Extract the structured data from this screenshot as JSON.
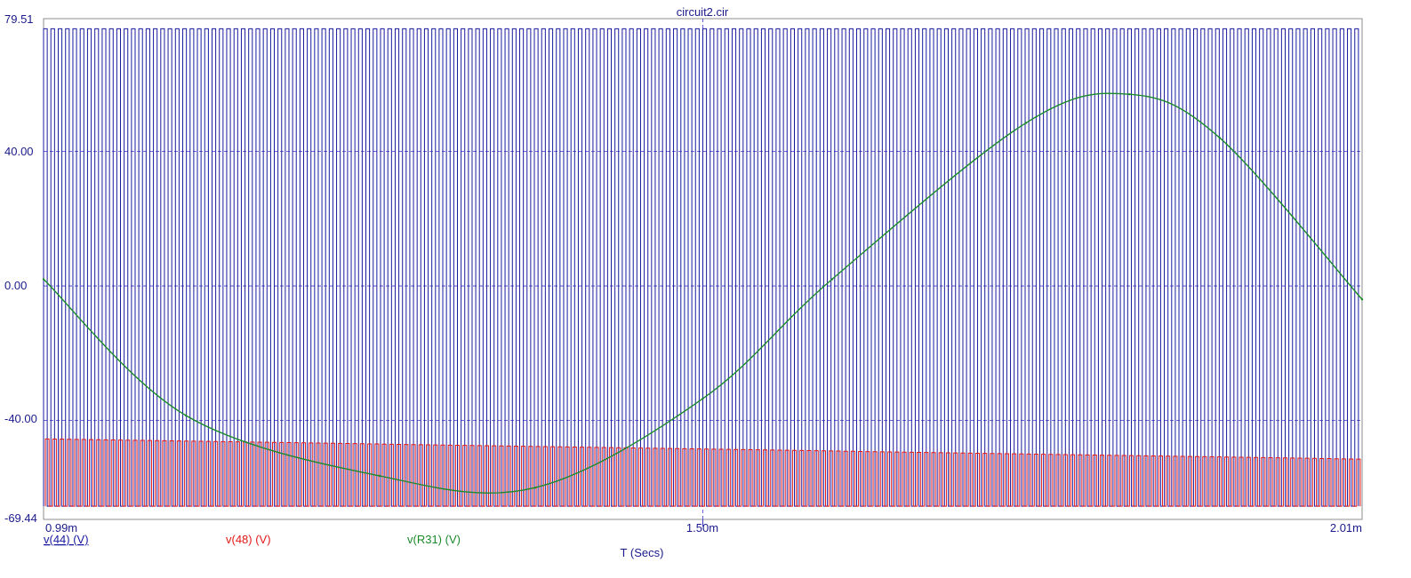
{
  "chart_data": {
    "type": "line",
    "title": "circuit2.cir",
    "xlabel": "T (Secs)",
    "ylabel": "",
    "xlim": [
      0.00099,
      0.00201
    ],
    "ylim": [
      -69.44,
      79.51
    ],
    "x_tick_labels": [
      {
        "value": 0.00099,
        "label": "0.99m"
      },
      {
        "value": 0.0015,
        "label": "1.50m"
      },
      {
        "value": 0.00201,
        "label": "2.01m"
      }
    ],
    "y_tick_labels": [
      {
        "value": 79.51,
        "label": "79.51"
      },
      {
        "value": 40.0,
        "label": "40.00"
      },
      {
        "value": 0.0,
        "label": "0.00"
      },
      {
        "value": -40.0,
        "label": "-40.00"
      },
      {
        "value": -69.44,
        "label": "-69.44"
      }
    ],
    "grid": true,
    "series": [
      {
        "name": "v(44) (V)",
        "color": "#1a1aa0",
        "description": "PWM square wave switching between about -65.5 V and 76.5 V",
        "low": -65.5,
        "high": 76.5,
        "approx_cycles": 180
      },
      {
        "name": "v(48) (V)",
        "color": "#e21818",
        "description": "switching between about -65.5 V and -45 V (upper level rises to about -51 V toward the end)",
        "low": -65.5,
        "high_start": -45.5,
        "high_end": -51.5
      },
      {
        "name": "v(R31) (V)",
        "color": "#1b8a2a",
        "description": "sinusoid, period ~1.25 ms",
        "x": [
          0.00099,
          0.0011,
          0.00125,
          0.00137,
          0.0015,
          0.0016,
          0.00175,
          0.00183,
          0.0019,
          0.00201
        ],
        "y": [
          2.0,
          -38.5,
          -56.5,
          -60.0,
          -33.5,
          2.0,
          48.5,
          57.0,
          44.0,
          -4.0
        ]
      }
    ]
  }
}
